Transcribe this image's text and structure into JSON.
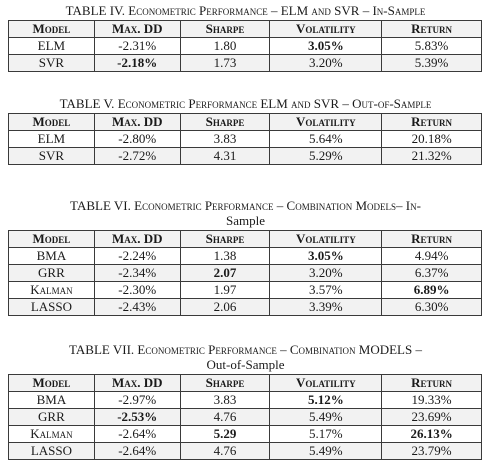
{
  "header": [
    "Model",
    "Max. DD",
    "Sharpe",
    "Volatility",
    "Return"
  ],
  "tables": [
    {
      "caption_prefix": "TABLE IV.",
      "caption_line1": "Econometric Performance – ELM and SVR – In-Sample",
      "caption_line2": "",
      "rows": [
        {
          "model": "ELM",
          "maxdd": "-2.31%",
          "sharpe": "1.80",
          "volatility": "3.05%",
          "return": "5.83%",
          "bold": [
            "volatility"
          ]
        },
        {
          "model": "SVR",
          "maxdd": "-2.18%",
          "sharpe": "1.73",
          "volatility": "3.20%",
          "return": "5.39%",
          "bold": [
            "maxdd"
          ]
        }
      ]
    },
    {
      "caption_prefix": "TABLE V.",
      "caption_line1": "Econometric Performance ELM and SVR – Out-of-Sample",
      "caption_line2": "",
      "rows": [
        {
          "model": "ELM",
          "maxdd": "-2.80%",
          "sharpe": "3.83",
          "volatility": "5.64%",
          "return": "20.18%",
          "bold": []
        },
        {
          "model": "SVR",
          "maxdd": "-2.72%",
          "sharpe": "4.31",
          "volatility": "5.29%",
          "return": "21.32%",
          "bold": []
        }
      ]
    },
    {
      "caption_prefix": "TABLE VI.",
      "caption_line1": "Econometric Performance – Combination Models– In-",
      "caption_line2": "Sample",
      "rows": [
        {
          "model": "BMA",
          "maxdd": "-2.24%",
          "sharpe": "1.38",
          "volatility": "3.05%",
          "return": "4.94%",
          "bold": [
            "volatility"
          ]
        },
        {
          "model": "GRR",
          "maxdd": "-2.34%",
          "sharpe": "2.07",
          "volatility": "3.20%",
          "return": "6.37%",
          "bold": [
            "sharpe"
          ]
        },
        {
          "model": "Kalman",
          "maxdd": "-2.30%",
          "sharpe": "1.97",
          "volatility": "3.57%",
          "return": "6.89%",
          "bold": [
            "return"
          ]
        },
        {
          "model": "LASSO",
          "maxdd": "-2.43%",
          "sharpe": "2.06",
          "volatility": "3.39%",
          "return": "6.30%",
          "bold": []
        }
      ]
    },
    {
      "caption_prefix": "TABLE VII.",
      "caption_line1": "Econometric Performance – Combination MODELS –",
      "caption_line2": "Out-of-Sample",
      "rows": [
        {
          "model": "BMA",
          "maxdd": "-2.97%",
          "sharpe": "3.83",
          "volatility": "5.12%",
          "return": "19.33%",
          "bold": [
            "volatility"
          ]
        },
        {
          "model": "GRR",
          "maxdd": "-2.53%",
          "sharpe": "4.76",
          "volatility": "5.49%",
          "return": "23.69%",
          "bold": [
            "maxdd"
          ]
        },
        {
          "model": "Kalman",
          "maxdd": "-2.64%",
          "sharpe": "5.29",
          "volatility": "5.17%",
          "return": "26.13%",
          "bold": [
            "sharpe",
            "return"
          ]
        },
        {
          "model": "LASSO",
          "maxdd": "-2.64%",
          "sharpe": "4.76",
          "volatility": "5.49%",
          "return": "23.79%",
          "bold": []
        }
      ]
    }
  ]
}
